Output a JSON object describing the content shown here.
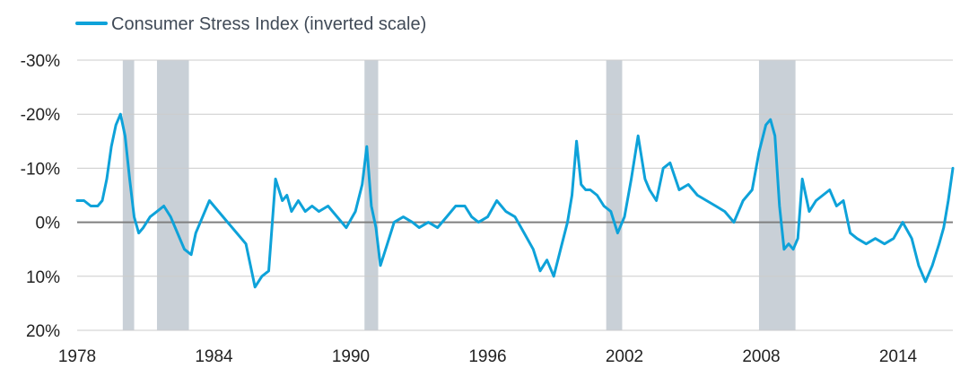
{
  "chart_data": {
    "type": "line",
    "title": "",
    "xlabel": "",
    "ylabel": "",
    "legend_position": "top-left",
    "grid": true,
    "inverted_y": true,
    "ylim": [
      -30,
      20
    ],
    "xlim": [
      1978,
      2016.4
    ],
    "y_ticks": [
      -30,
      -20,
      -10,
      0,
      10,
      20
    ],
    "y_tick_labels": [
      "-30%",
      "-20%",
      "-10%",
      "0%",
      "10%",
      "20%"
    ],
    "x_ticks": [
      1978,
      1984,
      1990,
      1996,
      2002,
      2008,
      2014
    ],
    "x_tick_labels": [
      "1978",
      "1984",
      "1990",
      "1996",
      "2002",
      "2008",
      "2014"
    ],
    "colors": {
      "series": "#0ea2d9",
      "recession": "#c9d0d7",
      "grid": "#cccccc",
      "zero_line": "#7f7f7f"
    },
    "recessions": [
      {
        "start": 1980.0,
        "end": 1980.5
      },
      {
        "start": 1981.5,
        "end": 1982.9
      },
      {
        "start": 1990.6,
        "end": 1991.2
      },
      {
        "start": 2001.2,
        "end": 2001.9
      },
      {
        "start": 2007.9,
        "end": 2009.5
      }
    ],
    "series": [
      {
        "name": "Consumer Stress Index (inverted scale)",
        "x": [
          1978.0,
          1978.3,
          1978.6,
          1978.9,
          1979.1,
          1979.3,
          1979.5,
          1979.7,
          1979.9,
          1980.1,
          1980.3,
          1980.5,
          1980.7,
          1980.9,
          1981.2,
          1981.5,
          1981.8,
          1982.1,
          1982.4,
          1982.7,
          1983.0,
          1983.2,
          1983.5,
          1983.8,
          1984.2,
          1984.6,
          1985.0,
          1985.4,
          1985.8,
          1986.1,
          1986.4,
          1986.7,
          1987.0,
          1987.2,
          1987.4,
          1987.7,
          1988.0,
          1988.3,
          1988.6,
          1989.0,
          1989.4,
          1989.8,
          1990.2,
          1990.5,
          1990.7,
          1990.9,
          1991.1,
          1991.3,
          1991.6,
          1991.9,
          1992.3,
          1992.7,
          1993.0,
          1993.4,
          1993.8,
          1994.2,
          1994.6,
          1995.0,
          1995.3,
          1995.6,
          1996.0,
          1996.4,
          1996.8,
          1997.2,
          1997.6,
          1998.0,
          1998.3,
          1998.6,
          1998.9,
          1999.2,
          1999.5,
          1999.7,
          1999.9,
          2000.1,
          2000.3,
          2000.5,
          2000.8,
          2001.1,
          2001.4,
          2001.7,
          2002.0,
          2002.3,
          2002.6,
          2002.9,
          2003.1,
          2003.4,
          2003.7,
          2004.0,
          2004.4,
          2004.8,
          2005.2,
          2005.6,
          2006.0,
          2006.4,
          2006.8,
          2007.2,
          2007.6,
          2007.9,
          2008.2,
          2008.4,
          2008.6,
          2008.8,
          2009.0,
          2009.2,
          2009.4,
          2009.6,
          2009.8,
          2010.1,
          2010.4,
          2010.7,
          2011.0,
          2011.3,
          2011.6,
          2011.9,
          2012.2,
          2012.6,
          2013.0,
          2013.4,
          2013.8,
          2014.2,
          2014.6,
          2014.9,
          2015.2,
          2015.5,
          2015.8,
          2016.0,
          2016.2,
          2016.4
        ],
        "values": [
          -4,
          -4,
          -3,
          -3,
          -4,
          -8,
          -14,
          -18,
          -20,
          -16,
          -8,
          -1,
          2,
          1,
          -1,
          -2,
          -3,
          -1,
          2,
          5,
          6,
          2,
          -1,
          -4,
          -2,
          0,
          2,
          4,
          12,
          10,
          9,
          -8,
          -4,
          -5,
          -2,
          -4,
          -2,
          -3,
          -2,
          -3,
          -1,
          1,
          -2,
          -7,
          -14,
          -3,
          1,
          8,
          4,
          0,
          -1,
          0,
          1,
          0,
          1,
          -1,
          -3,
          -3,
          -1,
          0,
          -1,
          -4,
          -2,
          -1,
          2,
          5,
          9,
          7,
          10,
          5,
          0,
          -5,
          -15,
          -7,
          -6,
          -6,
          -5,
          -3,
          -2,
          2,
          -1,
          -8,
          -16,
          -8,
          -6,
          -4,
          -10,
          -11,
          -6,
          -7,
          -5,
          -4,
          -3,
          -2,
          0,
          -4,
          -6,
          -13,
          -18,
          -19,
          -16,
          -3,
          5,
          4,
          5,
          3,
          -8,
          -2,
          -4,
          -5,
          -6,
          -3,
          -4,
          2,
          3,
          4,
          3,
          4,
          3,
          0,
          3,
          8,
          11,
          8,
          4,
          1,
          -4,
          -10
        ]
      }
    ]
  }
}
